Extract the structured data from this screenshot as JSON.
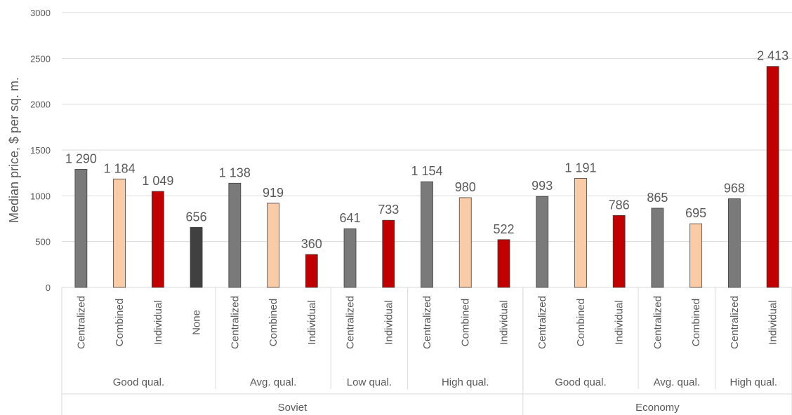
{
  "chart_data": {
    "type": "bar",
    "ylabel": "Median price, $ per sq. m.",
    "ylim": [
      0,
      3000
    ],
    "yticks": [
      "0",
      "500",
      "1000",
      "1500",
      "2000",
      "2500",
      "3000"
    ],
    "grid": true,
    "colors": {
      "Centralized": "#7a7a7a",
      "Combined": "#f9cba7",
      "Individual": "#c00000",
      "None": "#404040",
      "grid": "#d9d9d9",
      "text": "#595959"
    },
    "bars": [
      {
        "category": "Centralized",
        "value": 1290,
        "label": "1 290"
      },
      {
        "category": "Combined",
        "value": 1184,
        "label": "1 184"
      },
      {
        "category": "Individual",
        "value": 1049,
        "label": "1 049"
      },
      {
        "category": "None",
        "value": 656,
        "label": "656"
      },
      {
        "category": "Centralized",
        "value": 1138,
        "label": "1 138"
      },
      {
        "category": "Combined",
        "value": 919,
        "label": "919"
      },
      {
        "category": "Individual",
        "value": 360,
        "label": "360"
      },
      {
        "category": "Centralized",
        "value": 641,
        "label": "641"
      },
      {
        "category": "Individual",
        "value": 733,
        "label": "733"
      },
      {
        "category": "Centralized",
        "value": 1154,
        "label": "1 154"
      },
      {
        "category": "Combined",
        "value": 980,
        "label": "980"
      },
      {
        "category": "Individual",
        "value": 522,
        "label": "522"
      },
      {
        "category": "Centralized",
        "value": 993,
        "label": "993"
      },
      {
        "category": "Combined",
        "value": 1191,
        "label": "1 191"
      },
      {
        "category": "Individual",
        "value": 786,
        "label": "786"
      },
      {
        "category": "Centralized",
        "value": 865,
        "label": "865"
      },
      {
        "category": "Combined",
        "value": 695,
        "label": "695"
      },
      {
        "category": "Centralized",
        "value": 968,
        "label": "968"
      },
      {
        "category": "Individual",
        "value": 2413,
        "label": "2 413"
      }
    ],
    "quality_groups": [
      {
        "label": "Good qual.",
        "count": 4
      },
      {
        "label": "Avg. qual.",
        "count": 3
      },
      {
        "label": "Low qual.",
        "count": 2
      },
      {
        "label": "High qual.",
        "count": 3
      },
      {
        "label": "Good qual.",
        "count": 3
      },
      {
        "label": "Avg. qual.",
        "count": 2
      },
      {
        "label": "High qual.",
        "count": 2
      }
    ],
    "type_groups": [
      {
        "label": "Soviet",
        "count": 12
      },
      {
        "label": "Economy",
        "count": 7
      }
    ]
  }
}
